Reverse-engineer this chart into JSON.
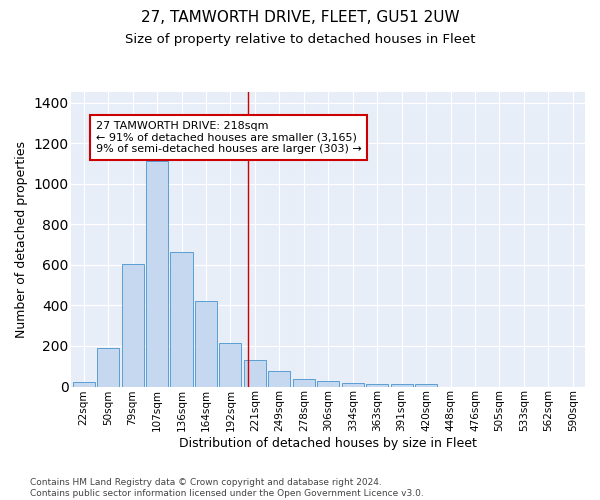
{
  "title": "27, TAMWORTH DRIVE, FLEET, GU51 2UW",
  "subtitle": "Size of property relative to detached houses in Fleet",
  "xlabel": "Distribution of detached houses by size in Fleet",
  "ylabel": "Number of detached properties",
  "categories": [
    "22sqm",
    "50sqm",
    "79sqm",
    "107sqm",
    "136sqm",
    "164sqm",
    "192sqm",
    "221sqm",
    "249sqm",
    "278sqm",
    "306sqm",
    "334sqm",
    "363sqm",
    "391sqm",
    "420sqm",
    "448sqm",
    "476sqm",
    "505sqm",
    "533sqm",
    "562sqm",
    "590sqm"
  ],
  "values": [
    20,
    190,
    605,
    1110,
    665,
    420,
    215,
    130,
    75,
    35,
    28,
    15,
    12,
    12,
    12,
    0,
    0,
    0,
    0,
    0,
    0
  ],
  "bar_color": "#c5d8f0",
  "bar_edgecolor": "#5a9fd4",
  "vline_x": 6.72,
  "vline_color": "#cc0000",
  "annotation_text": "27 TAMWORTH DRIVE: 218sqm\n← 91% of detached houses are smaller (3,165)\n9% of semi-detached houses are larger (303) →",
  "annotation_box_color": "#ffffff",
  "annotation_box_edgecolor": "#cc0000",
  "ylim": [
    0,
    1450
  ],
  "background_color": "#e8eef8",
  "footer_text": "Contains HM Land Registry data © Crown copyright and database right 2024.\nContains public sector information licensed under the Open Government Licence v3.0.",
  "title_fontsize": 11,
  "subtitle_fontsize": 9.5,
  "xlabel_fontsize": 9,
  "ylabel_fontsize": 9,
  "tick_fontsize": 7.5,
  "annotation_fontsize": 8
}
